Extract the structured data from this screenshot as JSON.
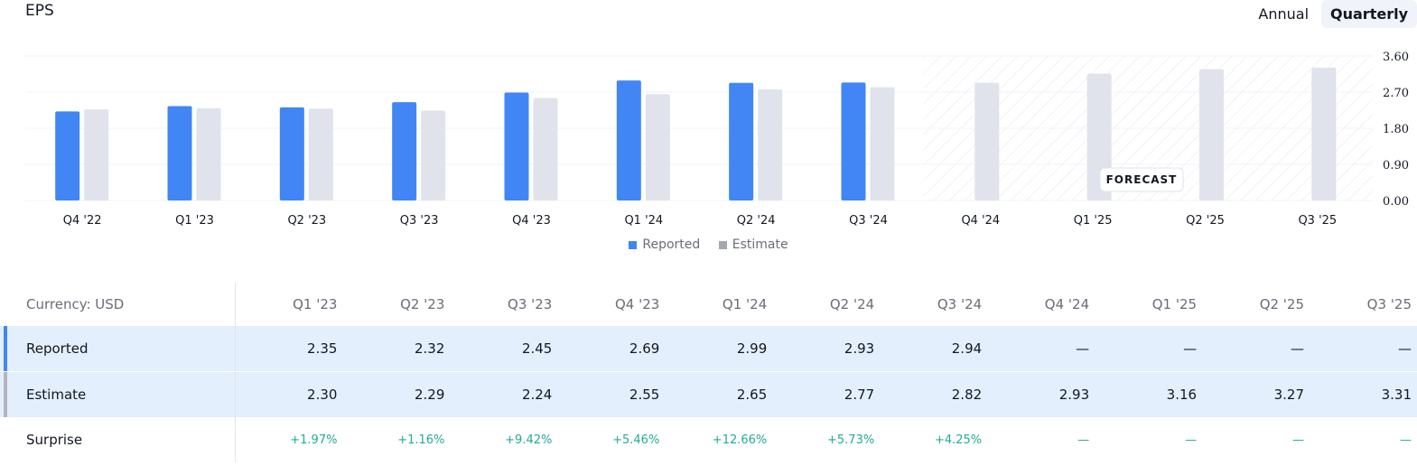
{
  "header": {
    "title": "EPS"
  },
  "period_toggle": {
    "annual_label": "Annual",
    "quarterly_label": "Quarterly",
    "selected": "Quarterly"
  },
  "colors": {
    "reported": "#4186f4",
    "estimate": "#e0e3eb",
    "surprise_positive": "#22ab94"
  },
  "chart_data": {
    "type": "bar",
    "categories": [
      "Q4 '22",
      "Q1 '23",
      "Q2 '23",
      "Q3 '23",
      "Q4 '23",
      "Q1 '24",
      "Q2 '24",
      "Q3 '24",
      "Q4 '24",
      "Q1 '25",
      "Q2 '25",
      "Q3 '25"
    ],
    "series": [
      {
        "name": "Reported",
        "values": [
          2.22,
          2.35,
          2.32,
          2.45,
          2.69,
          2.99,
          2.93,
          2.94,
          null,
          null,
          null,
          null
        ]
      },
      {
        "name": "Estimate",
        "values": [
          2.27,
          2.3,
          2.29,
          2.24,
          2.55,
          2.65,
          2.77,
          2.82,
          2.93,
          3.16,
          3.27,
          3.31
        ]
      }
    ],
    "yticks": [
      "0.00",
      "0.90",
      "1.80",
      "2.70",
      "3.60"
    ],
    "ylim": [
      0,
      3.6
    ],
    "forecast_label": "FORECAST",
    "forecast_start_index": 8,
    "legend_position": "bottom-center"
  },
  "table": {
    "currency_label": "Currency: USD",
    "columns": [
      "Q1 '23",
      "Q2 '23",
      "Q3 '23",
      "Q4 '23",
      "Q1 '24",
      "Q2 '24",
      "Q3 '24",
      "Q4 '24",
      "Q1 '25",
      "Q2 '25",
      "Q3 '25"
    ],
    "rows": [
      {
        "label": "Reported",
        "values": [
          "2.35",
          "2.32",
          "2.45",
          "2.69",
          "2.99",
          "2.93",
          "2.94",
          "—",
          "—",
          "—",
          "—"
        ]
      },
      {
        "label": "Estimate",
        "values": [
          "2.30",
          "2.29",
          "2.24",
          "2.55",
          "2.65",
          "2.77",
          "2.82",
          "2.93",
          "3.16",
          "3.27",
          "3.31"
        ]
      },
      {
        "label": "Surprise",
        "values": [
          "+1.97%",
          "+1.16%",
          "+9.42%",
          "+5.46%",
          "+12.66%",
          "+5.73%",
          "+4.25%",
          "—",
          "—",
          "—",
          "—"
        ]
      }
    ]
  }
}
